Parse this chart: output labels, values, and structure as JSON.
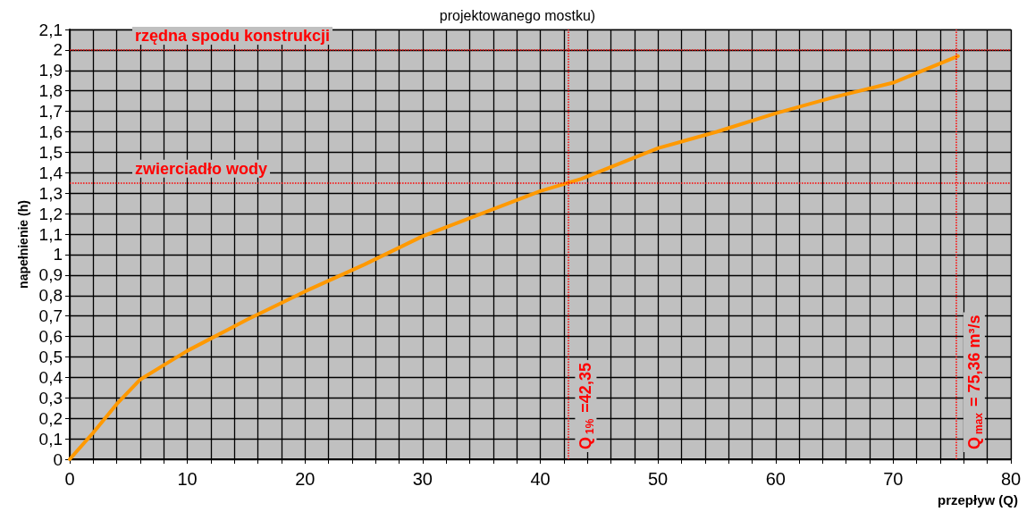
{
  "chart_data": {
    "type": "line",
    "title": "projektowanego mostku)",
    "xlabel": "przepływ (Q)",
    "ylabel": "napełnienie (h)",
    "x": [
      0,
      2,
      4,
      6,
      8,
      10,
      12,
      15,
      20,
      25,
      30,
      35,
      40,
      43.5,
      50,
      55,
      60,
      65,
      70,
      75.5
    ],
    "series": [
      {
        "color": "#ff9900",
        "values": [
          0,
          0.13,
          0.27,
          0.39,
          0.46,
          0.53,
          0.59,
          0.68,
          0.82,
          0.95,
          1.09,
          1.2,
          1.31,
          1.37,
          1.52,
          1.6,
          1.69,
          1.77,
          1.84,
          1.97
        ]
      }
    ],
    "xlim": [
      0,
      80
    ],
    "xticks": [
      0,
      {
        "value": 2,
        "label": null
      },
      {
        "value": 4,
        "label": null
      },
      {
        "value": 6,
        "label": null
      },
      {
        "value": 8,
        "label": null
      },
      10,
      {
        "value": 12,
        "label": null
      },
      {
        "value": 14,
        "label": null
      },
      {
        "value": 16,
        "label": null
      },
      {
        "value": 18,
        "label": null
      },
      20,
      {
        "value": 22,
        "label": null
      },
      {
        "value": 24,
        "label": null
      },
      {
        "value": 26,
        "label": null
      },
      {
        "value": 28,
        "label": null
      },
      30,
      {
        "value": 32,
        "label": null
      },
      {
        "value": 34,
        "label": null
      },
      {
        "value": 36,
        "label": null
      },
      {
        "value": 38,
        "label": null
      },
      40,
      {
        "value": 42,
        "label": null
      },
      {
        "value": 44,
        "label": null
      },
      {
        "value": 46,
        "label": null
      },
      {
        "value": 48,
        "label": null
      },
      50,
      {
        "value": 52,
        "label": null
      },
      {
        "value": 54,
        "label": null
      },
      {
        "value": 56,
        "label": null
      },
      {
        "value": 58,
        "label": null
      },
      60,
      {
        "value": 62,
        "label": null
      },
      {
        "value": 64,
        "label": null
      },
      {
        "value": 66,
        "label": null
      },
      {
        "value": 68,
        "label": null
      },
      70,
      {
        "value": 72,
        "label": null
      },
      {
        "value": 74,
        "label": null
      },
      {
        "value": 76,
        "label": null
      },
      {
        "value": 78,
        "label": null
      },
      80
    ],
    "ylim": [
      0,
      2.1
    ],
    "yticks": [
      0,
      {
        "value": 0.1,
        "label": "0,1"
      },
      {
        "value": 0.2,
        "label": "0,2"
      },
      {
        "value": 0.3,
        "label": "0,3"
      },
      {
        "value": 0.4,
        "label": "0,4"
      },
      {
        "value": 0.5,
        "label": "0,5"
      },
      {
        "value": 0.6,
        "label": "0,6"
      },
      {
        "value": 0.7,
        "label": "0,7"
      },
      {
        "value": 0.8,
        "label": "0,8"
      },
      {
        "value": 0.9,
        "label": "0,9"
      },
      1,
      {
        "value": 1.1,
        "label": "1,1"
      },
      {
        "value": 1.2,
        "label": "1,2"
      },
      {
        "value": 1.3,
        "label": "1,3"
      },
      {
        "value": 1.4,
        "label": "1,4"
      },
      {
        "value": 1.5,
        "label": "1,5"
      },
      {
        "value": 1.6,
        "label": "1,6"
      },
      {
        "value": 1.7,
        "label": "1,7"
      },
      {
        "value": 1.8,
        "label": "1,8"
      },
      {
        "value": 1.9,
        "label": "1,9"
      },
      2,
      {
        "value": 2.1,
        "label": "2,1"
      }
    ],
    "ref_lines": [
      {
        "axis": "y",
        "value": 2,
        "label": "rzędna spodu konstrukcji",
        "color": "#ff0000",
        "line_style": "dotted"
      },
      {
        "axis": "y",
        "value": 1.35,
        "label": "zwierciadło wody",
        "color": "#ff0000",
        "line_style": "dotted"
      },
      {
        "axis": "x",
        "value": 42.35,
        "label": "Q$_{1%}$ =42,35",
        "color": "#ff0000",
        "line_style": "dotted"
      },
      {
        "axis": "x",
        "value": 75.36,
        "label": "Q$_{max}$ = 75,36 m³/s",
        "color": "#ff0000",
        "line_style": "dotted"
      }
    ],
    "grid": true,
    "marker": "none",
    "line_style": "solid"
  }
}
